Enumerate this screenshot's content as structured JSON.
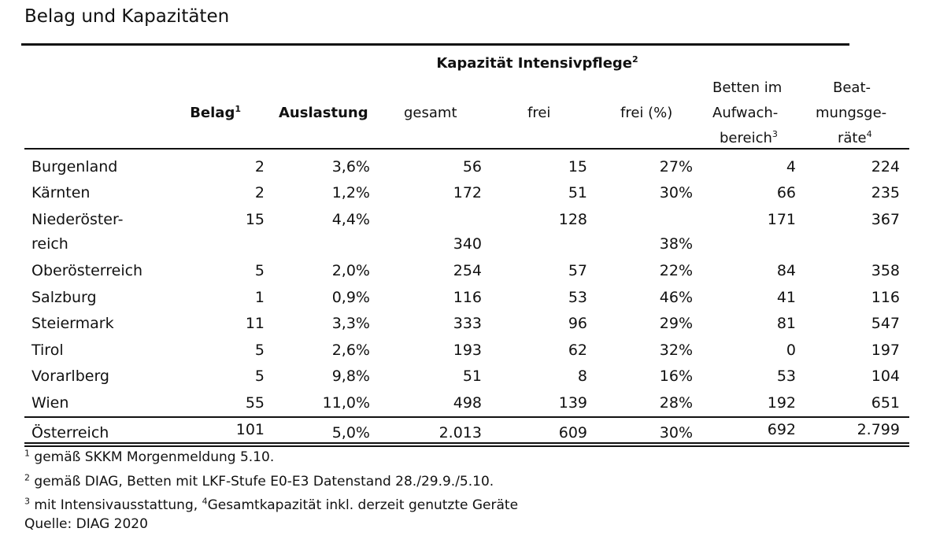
{
  "title": "Belag und Kapazitäten",
  "header": {
    "group_caption": "Kapazität Intensivpflege",
    "group_caption_sup": "2",
    "belag": "Belag",
    "belag_sup": "1",
    "auslastung": "Auslastung",
    "gesamt": "gesamt",
    "frei": "frei",
    "frei_pct": "frei (%)",
    "betten_l1": "Betten im",
    "betten_l2": "Aufwach-",
    "betten_l3": "bereich",
    "betten_sup": "3",
    "beat_l1": "Beat-",
    "beat_l2": "mungsge-",
    "beat_l3": "räte",
    "beat_sup": "4"
  },
  "rows": [
    {
      "region": "Burgenland",
      "belag": "2",
      "auslastung": "3,6%",
      "gesamt": "56",
      "frei": "15",
      "frei_pct": "27%",
      "betten": "4",
      "beatmung": "224"
    },
    {
      "region": "Kärnten",
      "belag": "2",
      "auslastung": "1,2%",
      "gesamt": "172",
      "frei": "51",
      "frei_pct": "30%",
      "betten": "66",
      "beatmung": "235"
    },
    {
      "region": "Niederöster-",
      "belag": "15",
      "auslastung": "4,4%",
      "gesamt": "",
      "frei": "128",
      "frei_pct": "",
      "betten": "171",
      "beatmung": "367"
    },
    {
      "region": "reich",
      "belag": "",
      "auslastung": "",
      "gesamt": "340",
      "frei": "",
      "frei_pct": "38%",
      "betten": "",
      "beatmung": ""
    },
    {
      "region": "Oberösterreich",
      "belag": "5",
      "auslastung": "2,0%",
      "gesamt": "254",
      "frei": "57",
      "frei_pct": "22%",
      "betten": "84",
      "beatmung": "358"
    },
    {
      "region": "Salzburg",
      "belag": "1",
      "auslastung": "0,9%",
      "gesamt": "116",
      "frei": "53",
      "frei_pct": "46%",
      "betten": "41",
      "beatmung": "116"
    },
    {
      "region": "Steiermark",
      "belag": "11",
      "auslastung": "3,3%",
      "gesamt": "333",
      "frei": "96",
      "frei_pct": "29%",
      "betten": "81",
      "beatmung": "547"
    },
    {
      "region": "Tirol",
      "belag": "5",
      "auslastung": "2,6%",
      "gesamt": "193",
      "frei": "62",
      "frei_pct": "32%",
      "betten": "0",
      "beatmung": "197"
    },
    {
      "region": "Vorarlberg",
      "belag": "5",
      "auslastung": "9,8%",
      "gesamt": "51",
      "frei": "8",
      "frei_pct": "16%",
      "betten": "53",
      "beatmung": "104"
    },
    {
      "region": "Wien",
      "belag": "55",
      "auslastung": "11,0%",
      "gesamt": "498",
      "frei": "139",
      "frei_pct": "28%",
      "betten": "192",
      "beatmung": "651"
    }
  ],
  "total": {
    "region": "Österreich",
    "belag": "101",
    "auslastung": "5,0%",
    "gesamt": "2.013",
    "frei": "609",
    "frei_pct": "30%",
    "betten": "692",
    "beatmung": "2.799"
  },
  "notes": {
    "n1_sup": "1",
    "n1": " gemäß SKKM Morgenmeldung 5.10.",
    "n2_sup": "2",
    "n2": " gemäß DIAG, Betten mit LKF-Stufe E0-E3 Datenstand 28./29.9./5.10.",
    "n3_sup": "3",
    "n3": " mit Intensivausstattung, ",
    "n4_sup": "4",
    "n4": "Gesamtkapazität inkl. derzeit genutzte Geräte",
    "source": "Quelle: DIAG 2020"
  }
}
